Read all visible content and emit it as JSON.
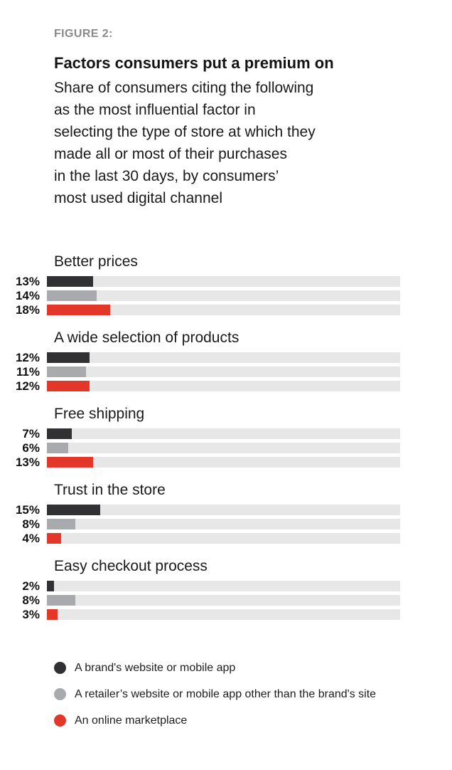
{
  "figure_label": "FIGURE 2:",
  "title": "Factors consumers put a premium on",
  "subtitle": "Share of consumers citing the following\nas the most influential factor in\nselecting the type of store at which they\nmade all or most of their purchases\nin the last 30 days, by consumers’\nmost used digital channel",
  "colors": {
    "figure_label": "#8a8a8a",
    "text": "#1a1a1a",
    "track": "#e7e7e8",
    "brand": "#313133",
    "retailer": "#a9aaad",
    "marketplace": "#e23729"
  },
  "chart_data": {
    "type": "bar",
    "orientation": "horizontal",
    "unit": "%",
    "xlim": [
      0,
      100
    ],
    "grid": false,
    "legend_position": "bottom",
    "categories": [
      "Better prices",
      "A wide selection of products",
      "Free shipping",
      "Trust in the store",
      "Easy checkout process"
    ],
    "series": [
      {
        "name": "A brand's website or mobile app",
        "color": "#313133",
        "values": [
          13,
          12,
          7,
          15,
          2
        ]
      },
      {
        "name": "A retailer’s website or mobile app other than the brand's site",
        "color": "#a9aaad",
        "values": [
          14,
          11,
          6,
          8,
          8
        ]
      },
      {
        "name": "An online marketplace",
        "color": "#e23729",
        "values": [
          18,
          12,
          13,
          4,
          3
        ]
      }
    ],
    "value_labels": [
      [
        "13%",
        "14%",
        "18%"
      ],
      [
        "12%",
        "11%",
        "12%"
      ],
      [
        "7%",
        "6%",
        "13%"
      ],
      [
        "15%",
        "8%",
        "4%"
      ],
      [
        "2%",
        "8%",
        "3%"
      ]
    ]
  },
  "legend": {
    "items": [
      {
        "label": "A brand's website or mobile app",
        "color": "#313133"
      },
      {
        "label": "A retailer’s website or mobile app other than the brand's site",
        "color": "#a9aaad"
      },
      {
        "label": "An online marketplace",
        "color": "#e23729"
      }
    ]
  }
}
